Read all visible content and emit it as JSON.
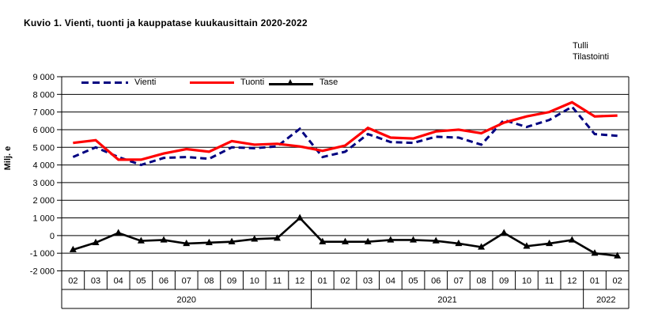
{
  "header": {
    "title": "Kuvio 1. Vienti, tuonti ja kauppatase kuukausittain 2020-2022"
  },
  "source": {
    "line1": "Tulli",
    "line2": "Tilastointi"
  },
  "chart_data": {
    "type": "line",
    "title": "Kuvio 1. Vienti, tuonti ja kauppatase kuukausittain 2020-2022",
    "xlabel": "",
    "ylabel": "Milj. e",
    "ylim": [
      -2000,
      9000
    ],
    "ytick_step": 1000,
    "ytick_labels": [
      "9 000",
      "8 000",
      "7 000",
      "6 000",
      "5 000",
      "4 000",
      "3 000",
      "2 000",
      "1 000",
      "0",
      "-1 000",
      "-2 000"
    ],
    "grid": true,
    "legend_position": "top-inside",
    "categories": [
      "02",
      "03",
      "04",
      "05",
      "06",
      "07",
      "08",
      "09",
      "10",
      "11",
      "12",
      "01",
      "02",
      "03",
      "04",
      "05",
      "06",
      "07",
      "08",
      "09",
      "10",
      "11",
      "12",
      "01",
      "02"
    ],
    "year_groups": [
      {
        "label": "2020",
        "span": 11
      },
      {
        "label": "2021",
        "span": 12
      },
      {
        "label": "2022",
        "span": 2
      }
    ],
    "series": [
      {
        "name": "Vienti",
        "color": "#000080",
        "style": "dashed",
        "values": [
          4450,
          5000,
          4450,
          4000,
          4400,
          4450,
          4350,
          5000,
          4950,
          5050,
          6050,
          4450,
          4750,
          5750,
          5300,
          5250,
          5600,
          5550,
          5150,
          6550,
          6150,
          6550,
          7300,
          5750,
          5650
        ]
      },
      {
        "name": "Tuonti",
        "color": "#ff0000",
        "style": "solid",
        "values": [
          5250,
          5400,
          4300,
          4300,
          4650,
          4900,
          4750,
          5350,
          5150,
          5200,
          5050,
          4800,
          5100,
          6100,
          5550,
          5500,
          5900,
          6000,
          5800,
          6400,
          6750,
          7000,
          7550,
          6750,
          6800
        ]
      },
      {
        "name": "Tase",
        "color": "#000000",
        "style": "solid-triangle-markers",
        "values": [
          -800,
          -400,
          150,
          -300,
          -250,
          -450,
          -400,
          -350,
          -200,
          -150,
          1000,
          -350,
          -350,
          -350,
          -250,
          -250,
          -300,
          -450,
          -650,
          150,
          -600,
          -450,
          -250,
          -1000,
          -1150
        ]
      }
    ]
  }
}
